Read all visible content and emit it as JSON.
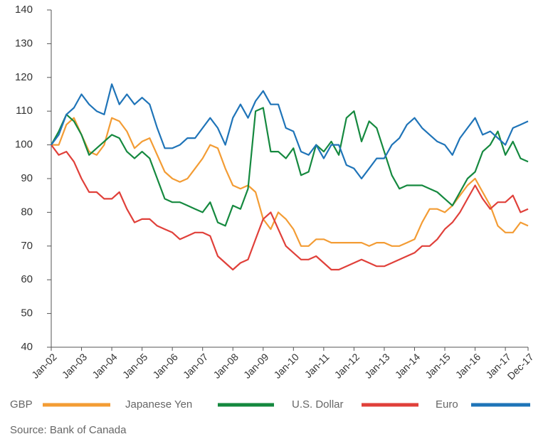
{
  "chart_data": {
    "type": "line",
    "categories": [
      "Jan-02",
      null,
      null,
      null,
      "Jan-03",
      null,
      null,
      null,
      "Jan-04",
      null,
      null,
      null,
      "Jan-05",
      null,
      null,
      null,
      "Jan-06",
      null,
      null,
      null,
      "Jan-07",
      null,
      null,
      null,
      "Jan-08",
      null,
      null,
      null,
      "Jan-09",
      null,
      null,
      null,
      "Jan-10",
      null,
      null,
      null,
      "Jan-11",
      null,
      null,
      null,
      "Jan-12",
      null,
      null,
      null,
      "Jan-13",
      null,
      null,
      null,
      "Jan-14",
      null,
      null,
      null,
      "Jan-15",
      null,
      null,
      null,
      "Jan-16",
      null,
      null,
      null,
      "Jan-17",
      null,
      null,
      "Dec-17"
    ],
    "series": [
      {
        "name": "GBP",
        "color": "#f39c34",
        "values": [
          100,
          100,
          106,
          108,
          103,
          98,
          97,
          100,
          108,
          107,
          104,
          99,
          101,
          102,
          97,
          92,
          90,
          89,
          90,
          93,
          96,
          100,
          99,
          93,
          88,
          87,
          88,
          86,
          78,
          75,
          80,
          78,
          75,
          70,
          70,
          72,
          72,
          71,
          71,
          71,
          71,
          71,
          70,
          71,
          71,
          70,
          70,
          71,
          72,
          77,
          81,
          81,
          80,
          82,
          85,
          88,
          90,
          86,
          82,
          76,
          74,
          74,
          77,
          76
        ]
      },
      {
        "name": "Japanese Yen",
        "color": "#15893f",
        "values": [
          100,
          104,
          109,
          107,
          103,
          97,
          99,
          101,
          103,
          102,
          98,
          96,
          98,
          96,
          90,
          84,
          83,
          83,
          82,
          81,
          80,
          83,
          77,
          76,
          82,
          81,
          87,
          110,
          111,
          98,
          98,
          96,
          99,
          91,
          92,
          100,
          98,
          101,
          97,
          108,
          110,
          101,
          107,
          105,
          98,
          91,
          87,
          88,
          88,
          88,
          87,
          86,
          84,
          82,
          86,
          90,
          92,
          98,
          100,
          104,
          97,
          101,
          96,
          95
        ]
      },
      {
        "name": "U.S. Dollar",
        "color": "#e0403a",
        "values": [
          100,
          97,
          98,
          95,
          90,
          86,
          86,
          84,
          84,
          86,
          81,
          77,
          78,
          78,
          76,
          75,
          74,
          72,
          73,
          74,
          74,
          73,
          67,
          65,
          63,
          65,
          66,
          72,
          78,
          80,
          75,
          70,
          68,
          66,
          66,
          67,
          65,
          63,
          63,
          64,
          65,
          66,
          65,
          64,
          64,
          65,
          66,
          67,
          68,
          70,
          70,
          72,
          75,
          77,
          80,
          84,
          88,
          84,
          81,
          83,
          83,
          85,
          80,
          81
        ]
      },
      {
        "name": "Euro",
        "color": "#1f74b8",
        "values": [
          100,
          103,
          109,
          111,
          115,
          112,
          110,
          109,
          118,
          112,
          115,
          112,
          114,
          112,
          105,
          99,
          99,
          100,
          102,
          102,
          105,
          108,
          105,
          100,
          108,
          112,
          108,
          113,
          116,
          112,
          112,
          105,
          104,
          98,
          97,
          100,
          96,
          100,
          100,
          94,
          93,
          90,
          93,
          96,
          96,
          100,
          102,
          106,
          108,
          105,
          103,
          101,
          100,
          97,
          102,
          105,
          108,
          103,
          104,
          102,
          100,
          105,
          106,
          107
        ]
      }
    ],
    "ylim": [
      40,
      140
    ],
    "yticks": [
      40,
      50,
      60,
      70,
      80,
      90,
      100,
      110,
      120,
      130,
      140
    ],
    "source": "Source: Bank of Canada"
  }
}
